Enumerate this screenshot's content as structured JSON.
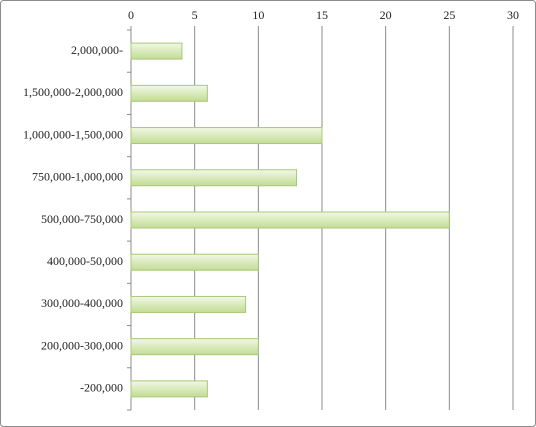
{
  "chart_data": {
    "type": "bar",
    "orientation": "horizontal",
    "categories": [
      "2,000,000-",
      "1,500,000-2,000,000",
      "1,000,000-1,500,000",
      "750,000-1,000,000",
      "500,000-750,000",
      "400,000-50,000",
      "300,000-400,000",
      "200,000-300,000",
      "-200,000"
    ],
    "values": [
      4,
      6,
      15,
      13,
      25,
      10,
      9,
      10,
      6
    ],
    "color": "#d3e8ac",
    "xlim": [
      0,
      30
    ],
    "xticks": [
      0,
      5,
      10,
      15,
      20,
      25,
      30
    ],
    "grid": true
  }
}
